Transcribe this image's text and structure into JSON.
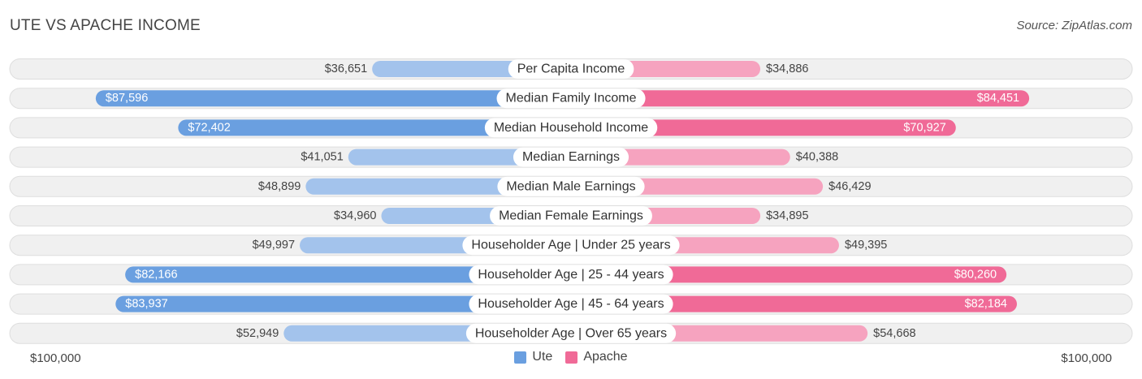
{
  "title": "UTE VS APACHE INCOME",
  "source": "Source: ZipAtlas.com",
  "colors": {
    "ute_light": "#a3c3ec",
    "ute_dark": "#6a9fe0",
    "apache_light": "#f6a3bf",
    "apache_dark": "#f06a97",
    "track": "#f0f0f0"
  },
  "chart_data": {
    "type": "bar",
    "orientation": "horizontal-diverging",
    "title": "UTE VS APACHE INCOME",
    "categories": [
      "Per Capita Income",
      "Median Family Income",
      "Median Household Income",
      "Median Earnings",
      "Median Male Earnings",
      "Median Female Earnings",
      "Householder Age | Under 25 years",
      "Householder Age | 25 - 44 years",
      "Householder Age | 45 - 64 years",
      "Householder Age | Over 65 years"
    ],
    "series": [
      {
        "name": "Ute",
        "values": [
          36651,
          87596,
          72402,
          41051,
          48899,
          34960,
          49997,
          82166,
          83937,
          52949
        ],
        "labels": [
          "$36,651",
          "$87,596",
          "$72,402",
          "$41,051",
          "$48,899",
          "$34,960",
          "$49,997",
          "$82,166",
          "$83,937",
          "$52,949"
        ]
      },
      {
        "name": "Apache",
        "values": [
          34886,
          84451,
          70927,
          40388,
          46429,
          34895,
          49395,
          80260,
          82184,
          54668
        ],
        "labels": [
          "$34,886",
          "$84,451",
          "$70,927",
          "$40,388",
          "$46,429",
          "$34,895",
          "$49,395",
          "$80,260",
          "$82,184",
          "$54,668"
        ]
      }
    ],
    "xlim": [
      0,
      100000
    ],
    "axis_min_label": "$100,000",
    "axis_max_label": "$100,000",
    "legend": [
      "Ute",
      "Apache"
    ]
  }
}
